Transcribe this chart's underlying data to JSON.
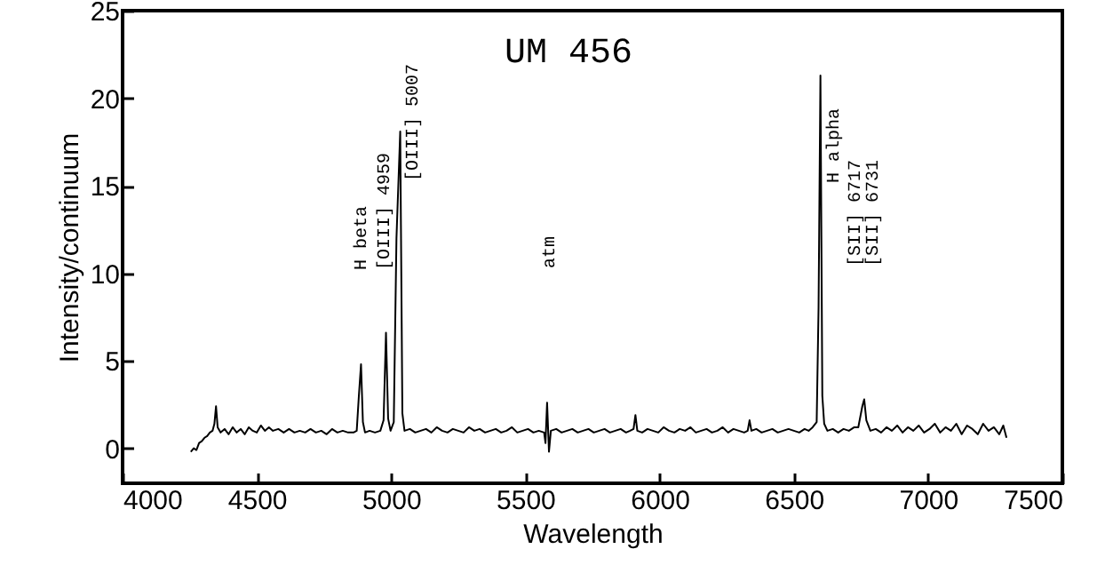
{
  "chart_data": {
    "type": "line",
    "title": "UM 456",
    "xlabel": "Wavelength",
    "ylabel": "Intensity/continuum",
    "xlim": [
      4000,
      7500
    ],
    "xticks": [
      4000,
      4500,
      5000,
      5500,
      6000,
      6500,
      7000,
      7500
    ],
    "ylim": [
      -2,
      25
    ],
    "yticks": [
      0,
      5,
      10,
      15,
      20,
      25
    ],
    "grid": false,
    "x": [
      4254,
      4265,
      4275,
      4285,
      4295,
      4305,
      4315,
      4325,
      4335,
      4342,
      4348,
      4354,
      4365,
      4380,
      4395,
      4410,
      4425,
      4440,
      4455,
      4470,
      4485,
      4500,
      4515,
      4530,
      4545,
      4560,
      4580,
      4600,
      4620,
      4640,
      4660,
      4680,
      4700,
      4720,
      4740,
      4760,
      4780,
      4800,
      4820,
      4840,
      4860,
      4872,
      4880,
      4888,
      4895,
      4903,
      4920,
      4940,
      4960,
      4972,
      4981,
      4989,
      4998,
      5010,
      5020,
      5034,
      5042,
      5050,
      5070,
      5090,
      5110,
      5130,
      5150,
      5170,
      5190,
      5210,
      5230,
      5250,
      5270,
      5290,
      5310,
      5330,
      5350,
      5370,
      5390,
      5410,
      5430,
      5450,
      5470,
      5490,
      5510,
      5530,
      5550,
      5570,
      5575,
      5581,
      5588,
      5595,
      5615,
      5635,
      5655,
      5675,
      5695,
      5715,
      5735,
      5755,
      5775,
      5795,
      5815,
      5835,
      5855,
      5875,
      5890,
      5903,
      5910,
      5917,
      5935,
      5955,
      5975,
      5995,
      6015,
      6035,
      6055,
      6075,
      6095,
      6115,
      6135,
      6155,
      6175,
      6195,
      6215,
      6235,
      6255,
      6275,
      6295,
      6315,
      6328,
      6335,
      6342,
      6360,
      6380,
      6400,
      6420,
      6440,
      6460,
      6480,
      6500,
      6520,
      6540,
      6555,
      6570,
      6585,
      6592,
      6599,
      6606,
      6613,
      6625,
      6645,
      6665,
      6685,
      6705,
      6725,
      6740,
      6755,
      6762,
      6770,
      6785,
      6805,
      6825,
      6845,
      6865,
      6885,
      6905,
      6925,
      6945,
      6965,
      6985,
      7005,
      7025,
      7045,
      7065,
      7085,
      7105,
      7125,
      7145,
      7165,
      7185,
      7205,
      7225,
      7245,
      7265,
      7280,
      7292
    ],
    "series": [
      {
        "color": "#000000",
        "values": [
          -0.2,
          0.0,
          -0.1,
          0.3,
          0.4,
          0.6,
          0.7,
          0.9,
          1.0,
          1.4,
          2.4,
          1.2,
          0.9,
          1.1,
          0.8,
          1.2,
          0.9,
          1.1,
          0.8,
          1.2,
          1.0,
          0.9,
          1.3,
          1.0,
          1.2,
          1.0,
          1.1,
          0.9,
          1.1,
          0.9,
          1.0,
          0.9,
          1.1,
          0.9,
          1.0,
          0.8,
          1.1,
          0.9,
          1.0,
          0.9,
          0.9,
          1.0,
          3.0,
          4.8,
          1.5,
          0.9,
          1.0,
          0.9,
          1.0,
          1.6,
          6.6,
          1.7,
          1.0,
          1.5,
          12,
          18.1,
          2.0,
          1.0,
          1.1,
          0.9,
          1.0,
          1.1,
          0.9,
          1.2,
          1.0,
          0.9,
          1.1,
          1.0,
          0.9,
          1.2,
          1.0,
          1.1,
          0.9,
          1.0,
          1.1,
          0.9,
          1.0,
          1.2,
          0.9,
          1.0,
          1.1,
          0.9,
          1.0,
          0.9,
          0.3,
          2.6,
          -0.2,
          1.0,
          1.1,
          0.9,
          1.0,
          1.1,
          0.9,
          1.0,
          1.1,
          0.9,
          1.0,
          1.1,
          0.9,
          1.0,
          1.1,
          0.9,
          1.0,
          1.1,
          1.9,
          1.0,
          0.9,
          1.1,
          1.0,
          0.9,
          1.2,
          1.0,
          0.9,
          1.1,
          1.0,
          1.2,
          0.9,
          1.0,
          1.1,
          0.9,
          1.0,
          1.2,
          0.9,
          1.1,
          1.0,
          0.9,
          1.0,
          1.6,
          1.0,
          1.1,
          0.9,
          1.0,
          1.1,
          0.9,
          1.0,
          1.1,
          1.0,
          0.9,
          1.1,
          1.0,
          1.2,
          1.5,
          8,
          21.3,
          3.0,
          1.4,
          1.0,
          1.1,
          0.9,
          1.1,
          1.0,
          1.2,
          1.2,
          2.4,
          2.8,
          1.6,
          1.0,
          1.1,
          0.9,
          1.2,
          1.0,
          1.3,
          0.9,
          1.2,
          1.0,
          1.3,
          0.9,
          1.1,
          1.4,
          0.9,
          1.2,
          1.0,
          1.4,
          0.8,
          1.3,
          1.1,
          0.8,
          1.4,
          1.0,
          1.2,
          0.8,
          1.3,
          0.6
        ]
      }
    ],
    "annotations": [
      "H beta",
      "[OIII] 4959",
      "[OIII] 5007",
      "atm",
      "H alpha",
      "[SII] 6717",
      "[SII] 6731"
    ]
  }
}
